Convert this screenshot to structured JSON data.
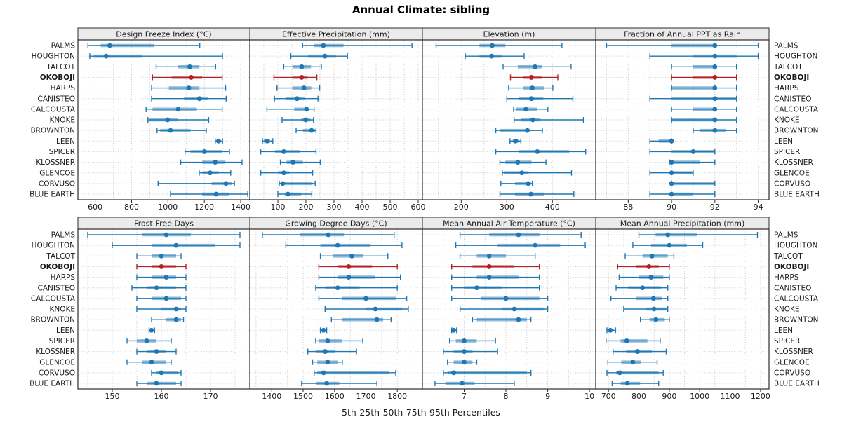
{
  "title": "Annual Climate: sibling",
  "caption": "5th-25th-50th-75th-95th Percentiles",
  "colors": {
    "sibling": "#1f77b4",
    "highlight": "#b22126",
    "grid": "#c9c9c9",
    "row_guide": "#cfcfcf",
    "border": "#2b2b2b",
    "header_bg": "#ebebeb",
    "text": "#1a1a1a"
  },
  "stations": [
    "PALMS",
    "HOUGHTON",
    "TALCOT",
    "OKOBOJI",
    "HARPS",
    "CANISTEO",
    "CALCOUSTA",
    "KNOKE",
    "BROWNTON",
    "LEEN",
    "SPICER",
    "KLOSSNER",
    "GLENCOE",
    "CORVUSO",
    "BLUE EARTH"
  ],
  "highlight_station": "OKOBOJI",
  "percentiles": [
    "5th",
    "25th",
    "50th",
    "75th",
    "95th"
  ],
  "chart_data": [
    {
      "type": "interval",
      "title": "Design Freeze Index (°C)",
      "xlim": [
        505,
        1450
      ],
      "xticks": [
        600,
        800,
        1000,
        1200,
        1400
      ],
      "minor_step": 100,
      "rows": [
        [
          560,
          630,
          680,
          925,
          1175
        ],
        [
          570,
          592,
          660,
          858,
          1300
        ],
        [
          935,
          1057,
          1120,
          1173,
          1262
        ],
        [
          915,
          1020,
          1128,
          1188,
          1298
        ],
        [
          910,
          1005,
          1115,
          1173,
          1317
        ],
        [
          910,
          1088,
          1173,
          1218,
          1320
        ],
        [
          880,
          915,
          1056,
          1159,
          1298
        ],
        [
          890,
          900,
          998,
          1056,
          1224
        ],
        [
          940,
          957,
          1014,
          1124,
          1211
        ],
        [
          1260,
          1270,
          1278,
          1290,
          1300
        ],
        [
          1094,
          1124,
          1200,
          1298,
          1338
        ],
        [
          1070,
          1188,
          1260,
          1316,
          1407
        ],
        [
          1172,
          1190,
          1232,
          1278,
          1345
        ],
        [
          946,
          1240,
          1319,
          1350,
          1366
        ],
        [
          1014,
          1188,
          1265,
          1336,
          1439
        ]
      ]
    },
    {
      "type": "interval",
      "title": "Effective Precipitation (mm)",
      "xlim": [
        0,
        615
      ],
      "xticks": [
        100,
        200,
        300,
        400,
        500,
        600
      ],
      "minor_step": 50,
      "rows": [
        [
          188,
          230,
          262,
          334,
          578
        ],
        [
          146,
          207,
          268,
          307,
          348
        ],
        [
          121,
          152,
          185,
          218,
          255
        ],
        [
          86,
          152,
          185,
          206,
          239
        ],
        [
          97,
          152,
          193,
          219,
          249
        ],
        [
          88,
          127,
          168,
          197,
          243
        ],
        [
          61,
          158,
          202,
          211,
          229
        ],
        [
          115,
          183,
          199,
          216,
          227
        ],
        [
          165,
          189,
          220,
          233,
          236
        ],
        [
          45,
          50,
          62,
          72,
          82
        ],
        [
          39,
          90,
          121,
          179,
          236
        ],
        [
          109,
          131,
          154,
          189,
          251
        ],
        [
          39,
          101,
          121,
          141,
          224
        ],
        [
          105,
          113,
          117,
          224,
          233
        ],
        [
          100,
          125,
          136,
          183,
          221
        ]
      ]
    },
    {
      "type": "interval",
      "title": "Elevation (m)",
      "xlim": [
        115,
        495
      ],
      "xticks": [
        200,
        300,
        400
      ],
      "minor_step": 50,
      "rows": [
        [
          145,
          240,
          268,
          297,
          421
        ],
        [
          209,
          240,
          267,
          290,
          338
        ],
        [
          292,
          324,
          362,
          377,
          441
        ],
        [
          308,
          336,
          354,
          377,
          412
        ],
        [
          304,
          335,
          356,
          381,
          401
        ],
        [
          300,
          327,
          354,
          380,
          445
        ],
        [
          315,
          320,
          342,
          366,
          390
        ],
        [
          316,
          331,
          357,
          374,
          468
        ],
        [
          276,
          285,
          345,
          349,
          378
        ],
        [
          307,
          313,
          319,
          327,
          331
        ],
        [
          276,
          327,
          367,
          437,
          473
        ],
        [
          285,
          297,
          324,
          354,
          386
        ],
        [
          290,
          295,
          333,
          348,
          442
        ],
        [
          287,
          318,
          347,
          353,
          356
        ],
        [
          285,
          318,
          353,
          382,
          447
        ]
      ]
    },
    {
      "type": "interval",
      "title": "Fraction of Annual PPT as Rain",
      "xlim": [
        86.5,
        94.5
      ],
      "xticks": [
        88,
        90,
        92,
        94
      ],
      "minor_step": 1,
      "rows": [
        [
          87,
          90,
          92,
          92,
          94
        ],
        [
          89,
          91,
          92,
          93,
          94
        ],
        [
          90,
          91,
          92,
          92,
          93
        ],
        [
          90,
          91,
          92,
          92,
          93
        ],
        [
          90,
          90,
          92,
          92,
          93
        ],
        [
          89,
          90,
          92,
          93,
          93
        ],
        [
          90,
          91,
          92,
          92,
          93
        ],
        [
          90,
          90,
          92,
          92,
          93
        ],
        [
          91,
          91.3,
          92,
          92.5,
          93
        ],
        [
          89,
          89.4,
          90,
          90,
          90
        ],
        [
          89,
          90,
          91,
          92,
          92
        ],
        [
          89.9,
          90,
          90,
          91.3,
          92
        ],
        [
          89,
          90,
          90,
          91,
          91
        ],
        [
          90,
          90,
          90,
          92,
          92
        ],
        [
          89,
          90,
          90,
          91,
          92
        ]
      ]
    },
    {
      "type": "interval",
      "title": "Frost-Free Days",
      "xlim": [
        143,
        178
      ],
      "xticks": [
        150,
        160,
        170
      ],
      "minor_step": 5,
      "rows": [
        [
          145,
          156,
          161,
          166,
          176
        ],
        [
          150,
          158,
          163,
          171,
          176
        ],
        [
          155,
          158,
          160,
          163,
          164
        ],
        [
          155,
          158,
          160,
          163,
          165
        ],
        [
          155,
          158,
          161,
          163,
          165
        ],
        [
          154,
          157,
          159,
          163,
          165
        ],
        [
          155,
          158,
          161,
          164,
          165
        ],
        [
          155,
          160,
          163,
          164,
          165
        ],
        [
          158,
          161,
          163,
          164,
          164.5
        ],
        [
          157.5,
          157.8,
          158,
          158.3,
          158.6
        ],
        [
          153,
          155,
          157,
          159,
          162
        ],
        [
          155,
          157,
          159,
          161,
          163
        ],
        [
          153,
          156,
          158,
          161,
          162
        ],
        [
          158,
          159,
          160,
          163.5,
          164
        ],
        [
          155,
          157,
          159,
          163,
          164
        ]
      ]
    },
    {
      "type": "interval",
      "title": "Growing Degree Days (°C)",
      "xlim": [
        1330,
        1880
      ],
      "xticks": [
        1400,
        1500,
        1600,
        1700,
        1800
      ],
      "minor_step": 50,
      "rows": [
        [
          1370,
          1490,
          1580,
          1630,
          1790
        ],
        [
          1445,
          1555,
          1610,
          1715,
          1815
        ],
        [
          1555,
          1595,
          1655,
          1690,
          1770
        ],
        [
          1550,
          1610,
          1645,
          1720,
          1800
        ],
        [
          1550,
          1610,
          1645,
          1730,
          1810
        ],
        [
          1540,
          1570,
          1610,
          1680,
          1800
        ],
        [
          1550,
          1625,
          1700,
          1795,
          1830
        ],
        [
          1570,
          1700,
          1730,
          1815,
          1835
        ],
        [
          1590,
          1625,
          1735,
          1755,
          1780
        ],
        [
          1555,
          1560,
          1565,
          1570,
          1575
        ],
        [
          1540,
          1550,
          1578,
          1625,
          1690
        ],
        [
          1515,
          1540,
          1570,
          1600,
          1670
        ],
        [
          1530,
          1545,
          1578,
          1612,
          1625
        ],
        [
          1535,
          1545,
          1565,
          1775,
          1795
        ],
        [
          1495,
          1540,
          1575,
          1615,
          1735
        ]
      ]
    },
    {
      "type": "interval",
      "title": "Mean Annual Air Temperature (°C)",
      "xlim": [
        6.0,
        10.15
      ],
      "xticks": [
        7,
        8,
        9,
        10
      ],
      "minor_step": 0.5,
      "rows": [
        [
          6.9,
          7.6,
          8.3,
          8.8,
          9.8
        ],
        [
          6.8,
          7.8,
          8.7,
          9.3,
          9.9
        ],
        [
          6.9,
          7.3,
          7.6,
          8.0,
          8.7
        ],
        [
          6.7,
          7.2,
          7.6,
          8.2,
          8.8
        ],
        [
          6.7,
          7.3,
          7.6,
          8.3,
          8.8
        ],
        [
          6.7,
          7.0,
          7.3,
          7.9,
          8.8
        ],
        [
          6.7,
          7.4,
          8.0,
          8.8,
          9.0
        ],
        [
          6.9,
          7.9,
          8.2,
          8.9,
          9.0
        ],
        [
          7.2,
          7.3,
          8.3,
          8.5,
          8.6
        ],
        [
          6.7,
          6.72,
          6.75,
          6.78,
          6.82
        ],
        [
          6.65,
          6.8,
          7.0,
          7.3,
          7.75
        ],
        [
          6.5,
          6.75,
          7.0,
          7.2,
          7.8
        ],
        [
          6.6,
          6.75,
          7.0,
          7.2,
          7.3
        ],
        [
          6.5,
          6.6,
          6.75,
          8.5,
          8.6
        ],
        [
          6.3,
          6.55,
          6.95,
          7.25,
          8.2
        ]
      ]
    },
    {
      "type": "interval",
      "title": "Mean Annual Precipitation (mm)",
      "xlim": [
        658,
        1228
      ],
      "xticks": [
        700,
        800,
        900,
        1000,
        1100,
        1200
      ],
      "minor_step": 50,
      "rows": [
        [
          800,
          855,
          895,
          990,
          1190
        ],
        [
          780,
          840,
          900,
          958,
          1010
        ],
        [
          755,
          812,
          843,
          895,
          915
        ],
        [
          730,
          790,
          833,
          865,
          900
        ],
        [
          735,
          800,
          840,
          880,
          900
        ],
        [
          725,
          765,
          812,
          873,
          895
        ],
        [
          708,
          790,
          848,
          877,
          895
        ],
        [
          750,
          825,
          850,
          890,
          895
        ],
        [
          805,
          835,
          856,
          885,
          900
        ],
        [
          695,
          700,
          706,
          715,
          723
        ],
        [
          692,
          740,
          760,
          828,
          870
        ],
        [
          715,
          758,
          795,
          843,
          890
        ],
        [
          698,
          742,
          780,
          808,
          860
        ],
        [
          695,
          725,
          737,
          865,
          880
        ],
        [
          712,
          740,
          762,
          804,
          865
        ]
      ]
    }
  ]
}
